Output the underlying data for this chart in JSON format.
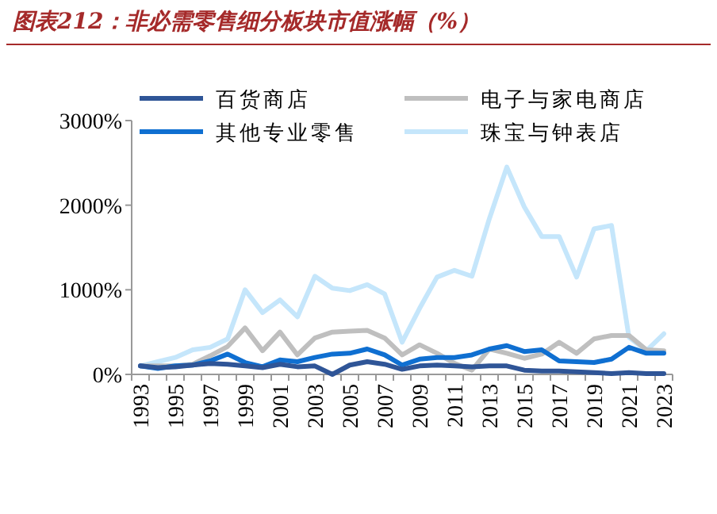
{
  "chart_data": {
    "type": "line",
    "title": "图表212：非必需零售细分板块市值涨幅（%）",
    "categories": [
      "1993",
      null,
      "1995",
      null,
      "1997",
      null,
      "1999",
      null,
      "2001",
      null,
      "2003",
      null,
      "2005",
      null,
      "2007",
      null,
      "2009",
      null,
      "2011",
      null,
      "2013",
      null,
      "2015",
      null,
      "2017",
      null,
      "2019",
      null,
      "2021",
      null,
      "2023"
    ],
    "series": [
      {
        "name": "百货商店",
        "color": "#2f5597",
        "values": [
          100,
          80,
          90,
          110,
          130,
          120,
          100,
          80,
          120,
          90,
          100,
          0,
          110,
          150,
          120,
          60,
          100,
          110,
          100,
          90,
          100,
          100,
          50,
          40,
          40,
          30,
          20,
          10,
          20,
          10,
          10
        ]
      },
      {
        "name": "电子与家电商店",
        "color": "#bfbfbf",
        "values": [
          100,
          100,
          100,
          120,
          220,
          330,
          550,
          280,
          500,
          230,
          430,
          500,
          510,
          520,
          430,
          230,
          350,
          250,
          130,
          50,
          300,
          250,
          190,
          240,
          380,
          250,
          420,
          460,
          460,
          290,
          280
        ]
      },
      {
        "name": "其他专业零售",
        "color": "#0f6fd1",
        "values": [
          100,
          70,
          100,
          110,
          160,
          240,
          140,
          90,
          170,
          150,
          200,
          240,
          250,
          300,
          230,
          110,
          180,
          200,
          200,
          230,
          300,
          340,
          270,
          290,
          160,
          150,
          140,
          180,
          320,
          250,
          250
        ]
      },
      {
        "name": "珠宝与钟表店",
        "color": "#c5e6fb",
        "values": [
          100,
          150,
          200,
          290,
          320,
          420,
          1000,
          730,
          880,
          680,
          1160,
          1020,
          990,
          1060,
          950,
          380,
          780,
          1150,
          1230,
          1160,
          1840,
          2450,
          1980,
          1630,
          1630,
          1150,
          1720,
          1760,
          440,
          280,
          480
        ]
      }
    ],
    "ylim": [
      0,
      3000
    ],
    "yticks": [
      {
        "value": 0,
        "label": "0%"
      },
      {
        "value": 1000,
        "label": "1000%"
      },
      {
        "value": 2000,
        "label": "2000%"
      },
      {
        "value": 3000,
        "label": "3000%"
      }
    ],
    "legend": "top",
    "marker": "none",
    "line_style": "solid"
  }
}
